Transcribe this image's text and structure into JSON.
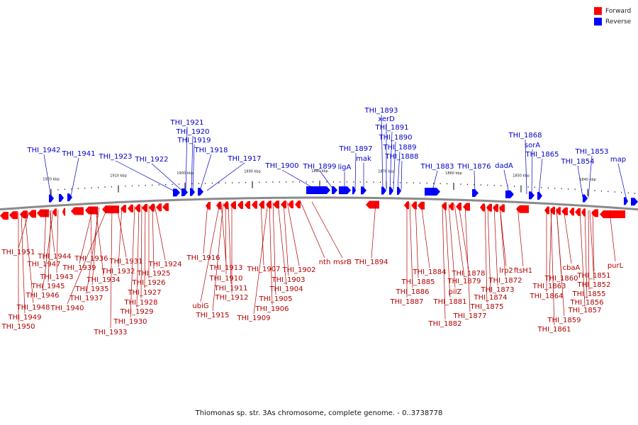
{
  "caption": "Thiomonas sp. str. 3As chromosome, complete genome. - 0..3738778",
  "legend": [
    {
      "label": "Forward",
      "color": "#ff0000"
    },
    {
      "label": "Reverse",
      "color": "#0000ff"
    }
  ],
  "colors": {
    "forward_text": "#b30000",
    "reverse_text": "#0000c8",
    "forward_gene": "#ff0000",
    "reverse_gene": "#0000ff",
    "axis": "#888888"
  },
  "ticks": [
    "1920 kbp",
    "1910 kbp",
    "1900 kbp",
    "1890 kbp",
    "1880 kbp",
    "1870 kbp",
    "1860 kbp",
    "1850 kbp",
    "1840 kbp"
  ],
  "reverse_labels": [
    "THI_1942",
    "THI_1941",
    "THI_1923",
    "THI_1922",
    "THI_1921",
    "THI_1920",
    "THI_1919",
    "THI_1918",
    "THI_1917",
    "THI_1900",
    "THI_1899",
    "ligA",
    "THI_1897",
    "mak",
    "THI_1893",
    "xerD",
    "THI_1891",
    "THI_1890",
    "THI_1889",
    "THI_1888",
    "THI_1883",
    "THI_1876",
    "dadA",
    "THI_1868",
    "sorA",
    "THI_1865",
    "THI_1854",
    "THI_1853",
    "map"
  ],
  "forward_labels": [
    "THI_1951",
    "THI_1944",
    "THI_1947",
    "THI_1943",
    "THI_1945",
    "THI_1946",
    "THI_1948",
    "THI_1949",
    "THI_1950",
    "THI_1936",
    "THI_1939",
    "THI_1934",
    "THI_1935",
    "THI_1937",
    "THI_1940",
    "THI_1931",
    "THI_1932",
    "THI_1933",
    "THI_1924",
    "THI_1925",
    "THI_1926",
    "THI_1927",
    "THI_1928",
    "THI_1929",
    "THI_1930",
    "THI_1916",
    "THI_1913",
    "THI_1910",
    "THI_1911",
    "ubiG",
    "THI_1912",
    "THI_1915",
    "THI_1907",
    "THI_1902",
    "THI_1903",
    "THI_1904",
    "THI_1905",
    "THI_1906",
    "THI_1909",
    "nth",
    "msrB",
    "THI_1894",
    "THI_1884",
    "THI_1885",
    "THI_1886",
    "THI_1887",
    "THI_1878",
    "THI_1879",
    "pilZ",
    "THI_1881",
    "THI_1882",
    "THI_1872",
    "THI_1873",
    "THI_1874",
    "THI_1875",
    "THI_1877",
    "lrp2",
    "ftsH1",
    "THI_1860",
    "cbaA",
    "THI_1863",
    "THI_1864",
    "THI_1859",
    "THI_1861",
    "THI_1851",
    "THI_1852",
    "THI_1855",
    "THI_1856",
    "THI_1857",
    "purL"
  ]
}
